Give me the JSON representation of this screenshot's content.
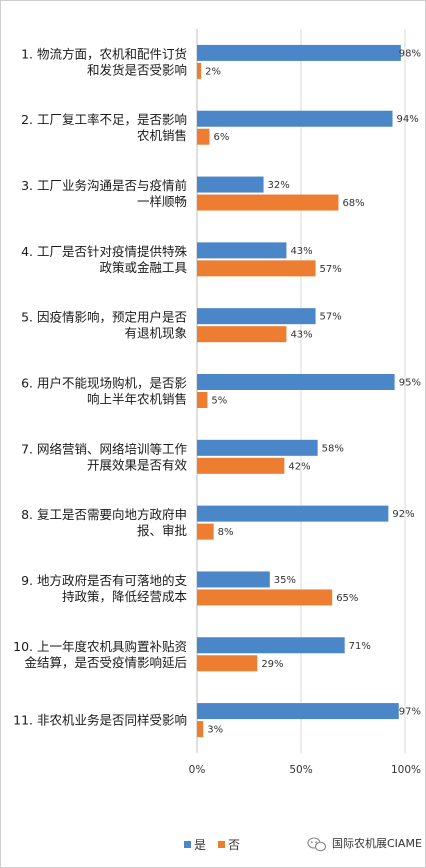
{
  "chart_data": {
    "type": "bar",
    "orientation": "horizontal",
    "categories": [
      [
        "1. 物流方面，农机和配件订货",
        "和发货是否受影响"
      ],
      [
        "2. 工厂复工率不足，是否影响",
        "农机销售"
      ],
      [
        "3. 工厂业务沟通是否与疫情前",
        "一样顺畅"
      ],
      [
        "4. 工厂是否针对疫情提供特殊",
        "政策或金融工具"
      ],
      [
        "5. 因疫情影响，预定用户是否",
        "有退机现象"
      ],
      [
        "6. 用户不能现场购机，是否影",
        "响上半年农机销售"
      ],
      [
        "7. 网络营销、网络培训等工作",
        "开展效果是否有效"
      ],
      [
        "8. 复工是否需要向地方政府申",
        "报、审批"
      ],
      [
        "9. 地方政府是否有可落地的支",
        "持政策，降低经营成本"
      ],
      [
        "10. 上一年度农机具购置补贴资",
        "金结算，是否受疫情影响延后"
      ],
      [
        "11. 非农机业务是否同样受影响"
      ]
    ],
    "series": [
      {
        "name": "是",
        "color": "#4a86c8",
        "values": [
          98,
          94,
          32,
          43,
          57,
          95,
          58,
          92,
          35,
          71,
          97
        ]
      },
      {
        "name": "否",
        "color": "#ed7d31",
        "values": [
          2,
          6,
          68,
          57,
          43,
          5,
          42,
          8,
          65,
          29,
          3
        ]
      }
    ],
    "xlim": [
      0,
      100
    ],
    "xticks": [
      "0%",
      "50%",
      "100%"
    ],
    "grid": "vertical",
    "legend_position": "bottom"
  },
  "watermark": "国际农机展CIAME"
}
